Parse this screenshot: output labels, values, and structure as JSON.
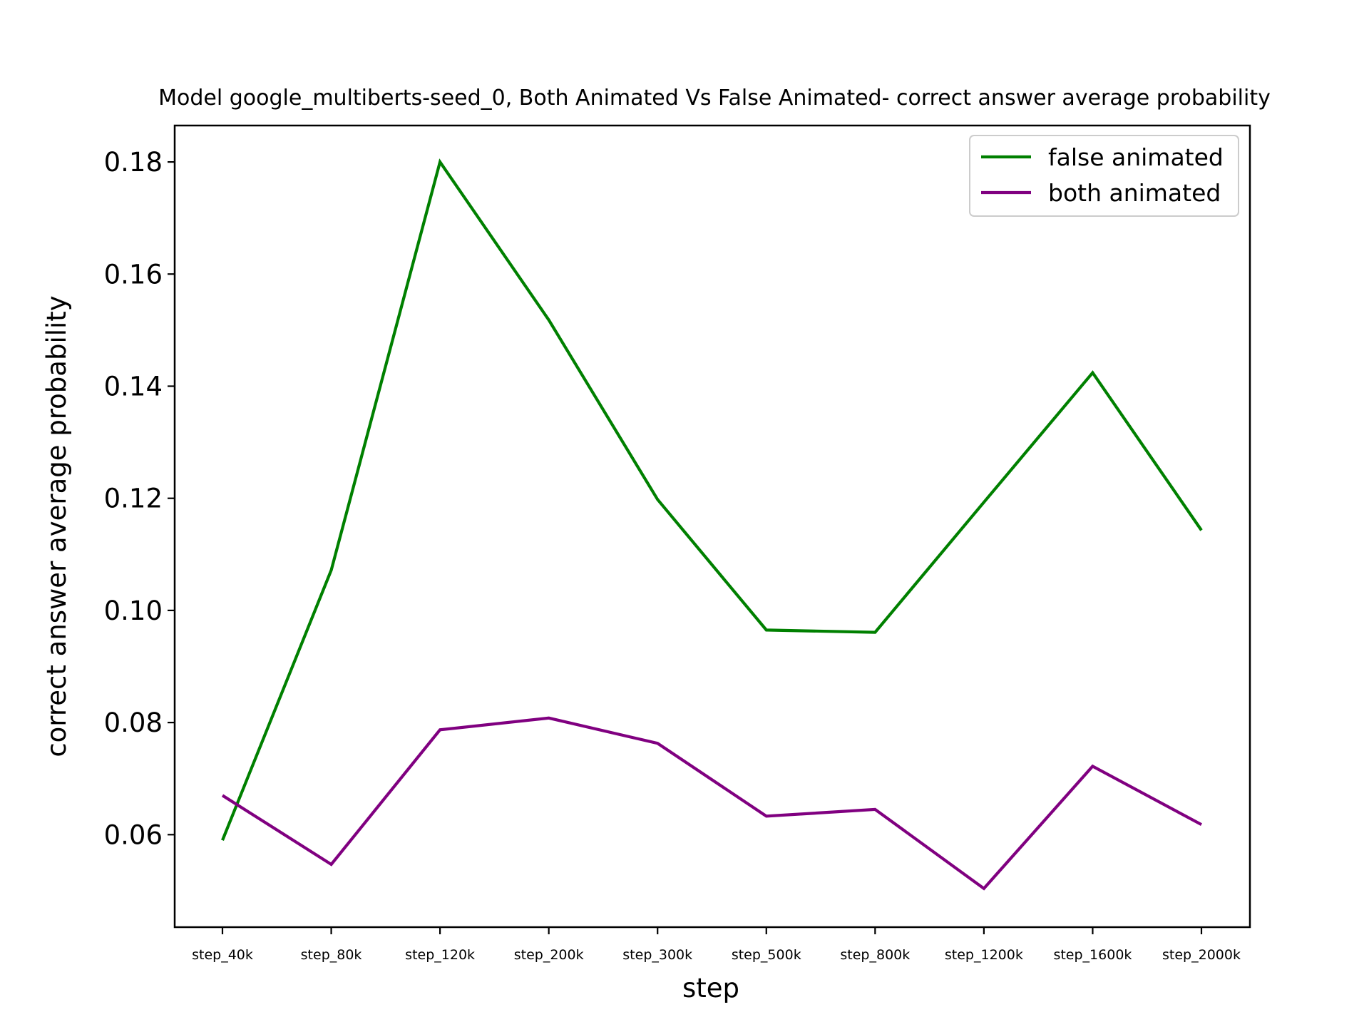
{
  "chart_data": {
    "type": "line",
    "title": "Model google_multiberts-seed_0, Both Animated Vs False Animated- correct answer average probability",
    "xlabel": "step",
    "ylabel": "correct answer average probability",
    "categories": [
      "step_40k",
      "step_80k",
      "step_120k",
      "step_200k",
      "step_300k",
      "step_500k",
      "step_800k",
      "step_1200k",
      "step_1600k",
      "step_2000k"
    ],
    "ylim": [
      0.0435,
      0.1865
    ],
    "yticks": [
      0.06,
      0.08,
      0.1,
      0.12,
      0.14,
      0.16,
      0.18
    ],
    "ytick_labels": [
      "0.06",
      "0.08",
      "0.10",
      "0.12",
      "0.14",
      "0.16",
      "0.18"
    ],
    "grid": false,
    "legend_position": "top-right",
    "series": [
      {
        "name": "false animated",
        "color": "#008000",
        "values": [
          0.059,
          0.1072,
          0.18,
          0.1518,
          0.1198,
          0.0965,
          0.0961,
          0.1193,
          0.1424,
          0.1143
        ]
      },
      {
        "name": "both animated",
        "color": "#800080",
        "values": [
          0.067,
          0.0547,
          0.0787,
          0.0808,
          0.0763,
          0.0633,
          0.0645,
          0.0504,
          0.0722,
          0.0618
        ]
      }
    ]
  }
}
